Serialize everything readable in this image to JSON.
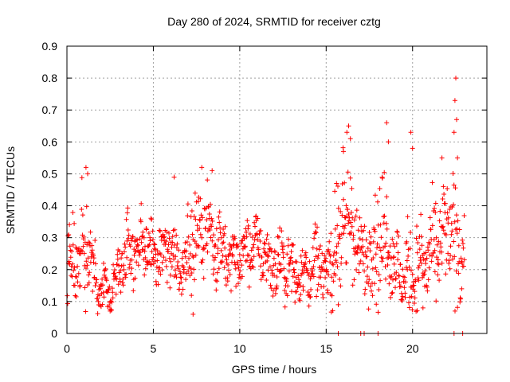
{
  "chart_data": {
    "type": "scatter",
    "title": "Day 280 of 2024, SRMTID for receiver cztg",
    "xlabel": "GPS time / hours",
    "ylabel": "SRMTID / TECUs",
    "xlim": [
      0,
      24.3
    ],
    "ylim": [
      0,
      0.9
    ],
    "xticks": [
      0,
      5,
      10,
      15,
      20
    ],
    "xtick_labels": [
      "0",
      "5",
      "10",
      "15",
      "20"
    ],
    "yticks": [
      0,
      0.1,
      0.2,
      0.3,
      0.4,
      0.5,
      0.6,
      0.7,
      0.8,
      0.9
    ],
    "ytick_labels": [
      "0",
      "0.1",
      "0.2",
      "0.3",
      "0.4",
      "0.5",
      "0.6",
      "0.7",
      "0.8",
      "0.9"
    ],
    "grid": true,
    "marker": "+",
    "marker_color": "#ff0000",
    "series": [
      {
        "name": "SRMTID",
        "profile": {
          "hours": [
            0.0,
            0.5,
            1.0,
            1.5,
            2.0,
            2.5,
            3.0,
            3.5,
            4.0,
            4.5,
            5.0,
            5.5,
            6.0,
            6.5,
            7.0,
            7.5,
            8.0,
            8.5,
            9.0,
            9.5,
            10.0,
            10.5,
            11.0,
            11.5,
            12.0,
            12.5,
            13.0,
            13.5,
            14.0,
            14.5,
            15.0,
            15.5,
            16.0,
            16.5,
            17.0,
            17.5,
            18.0,
            18.5,
            19.0,
            19.5,
            20.0,
            20.5,
            21.0,
            21.5,
            22.0,
            22.5,
            23.0
          ],
          "median": [
            0.2,
            0.22,
            0.3,
            0.18,
            0.14,
            0.12,
            0.2,
            0.26,
            0.27,
            0.28,
            0.25,
            0.24,
            0.26,
            0.22,
            0.24,
            0.32,
            0.34,
            0.3,
            0.26,
            0.22,
            0.24,
            0.27,
            0.28,
            0.24,
            0.2,
            0.22,
            0.2,
            0.18,
            0.2,
            0.22,
            0.18,
            0.26,
            0.33,
            0.35,
            0.22,
            0.26,
            0.3,
            0.32,
            0.2,
            0.18,
            0.18,
            0.22,
            0.24,
            0.26,
            0.32,
            0.28,
            0.26
          ],
          "spread": [
            0.08,
            0.1,
            0.12,
            0.05,
            0.04,
            0.04,
            0.07,
            0.07,
            0.06,
            0.06,
            0.06,
            0.06,
            0.09,
            0.06,
            0.08,
            0.08,
            0.09,
            0.08,
            0.07,
            0.06,
            0.06,
            0.06,
            0.06,
            0.06,
            0.06,
            0.06,
            0.06,
            0.05,
            0.06,
            0.08,
            0.06,
            0.1,
            0.15,
            0.12,
            0.08,
            0.1,
            0.14,
            0.13,
            0.08,
            0.08,
            0.09,
            0.09,
            0.1,
            0.1,
            0.12,
            0.14,
            0.08
          ]
        },
        "highlights": [
          {
            "x": 1.1,
            "y": 0.52
          },
          {
            "x": 1.2,
            "y": 0.5
          },
          {
            "x": 6.2,
            "y": 0.49
          },
          {
            "x": 7.8,
            "y": 0.52
          },
          {
            "x": 8.4,
            "y": 0.51
          },
          {
            "x": 15.6,
            "y": 0.47
          },
          {
            "x": 16.2,
            "y": 0.63
          },
          {
            "x": 16.3,
            "y": 0.65
          },
          {
            "x": 16.4,
            "y": 0.61
          },
          {
            "x": 18.5,
            "y": 0.66
          },
          {
            "x": 18.6,
            "y": 0.6
          },
          {
            "x": 19.9,
            "y": 0.63
          },
          {
            "x": 22.5,
            "y": 0.8
          },
          {
            "x": 22.45,
            "y": 0.73
          },
          {
            "x": 22.55,
            "y": 0.67
          },
          {
            "x": 22.4,
            "y": 0.63
          },
          {
            "x": 22.6,
            "y": 0.55
          },
          {
            "x": 16.0,
            "y": 0.57
          },
          {
            "x": 20.0,
            "y": 0.58
          },
          {
            "x": 21.7,
            "y": 0.55
          },
          {
            "x": 15.7,
            "y": 0.0
          },
          {
            "x": 17.0,
            "y": 0.0
          },
          {
            "x": 17.2,
            "y": 0.0
          },
          {
            "x": 18.0,
            "y": 0.0
          },
          {
            "x": 22.4,
            "y": 0.0
          },
          {
            "x": 22.9,
            "y": 0.0
          },
          {
            "x": 2.5,
            "y": 0.07
          },
          {
            "x": 7.3,
            "y": 0.06
          },
          {
            "x": 20.6,
            "y": 0.08
          },
          {
            "x": 15.7,
            "y": 0.09
          }
        ]
      }
    ]
  }
}
